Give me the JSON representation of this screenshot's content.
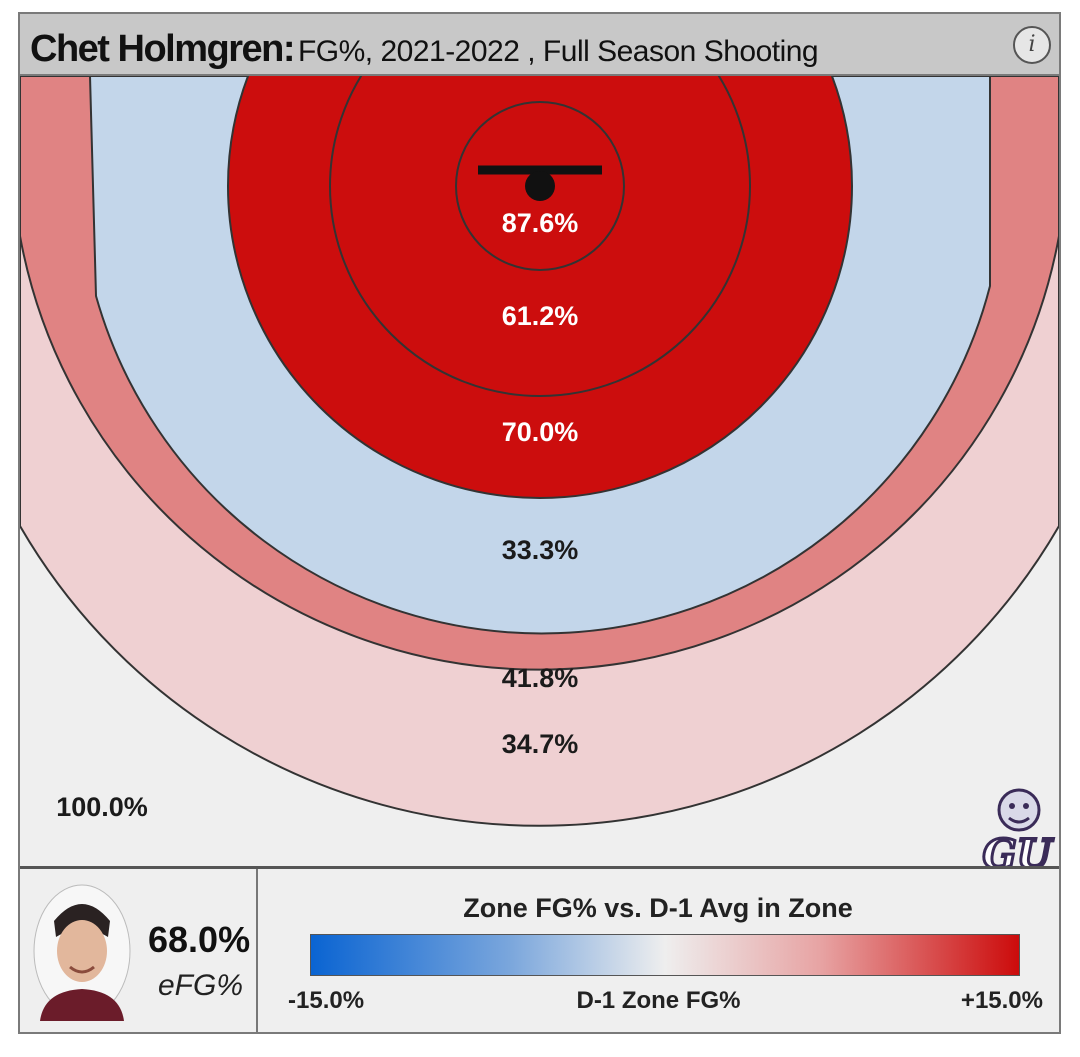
{
  "header": {
    "player_name": "Chet Holmgren:",
    "subtitle": "FG%, 2021-2022 , Full Season Shooting",
    "info_icon": "info-icon",
    "info_glyph": "i"
  },
  "chart_data": {
    "type": "heatmap",
    "title": "Chet Holmgren: FG%, 2021-2022 , Full Season Shooting",
    "zones": [
      {
        "zone": "restricted-area",
        "fg_pct": "87.6%",
        "color": "#cc0d0d"
      },
      {
        "zone": "short-paint",
        "fg_pct": "61.2%",
        "color": "#cc0d0d"
      },
      {
        "zone": "long-paint",
        "fg_pct": "70.0%",
        "color": "#cc0d0d"
      },
      {
        "zone": "midrange",
        "fg_pct": "33.3%",
        "color": "#c3d6ea"
      },
      {
        "zone": "three-point-near",
        "fg_pct": "41.8%",
        "color": "#e08383"
      },
      {
        "zone": "three-point-deep",
        "fg_pct": "34.7%",
        "color": "#efd0d2"
      },
      {
        "zone": "heave",
        "fg_pct": "100.0%",
        "color": "#efefef"
      }
    ],
    "legend": {
      "title": "Zone FG% vs. D-1 Avg in Zone",
      "min_label": "-15.0%",
      "mid_label": "D-1 Zone FG%",
      "max_label": "+15.0%",
      "colors": [
        "#0a64d2",
        "#eeeeee",
        "#cc0b0b"
      ]
    }
  },
  "summary": {
    "efg_value": "68.0%",
    "efg_label": "eFG%"
  },
  "logo": {
    "icon": "gonzaga-bulldog-logo",
    "text": "GU"
  },
  "avatar": {
    "icon": "player-headshot"
  }
}
